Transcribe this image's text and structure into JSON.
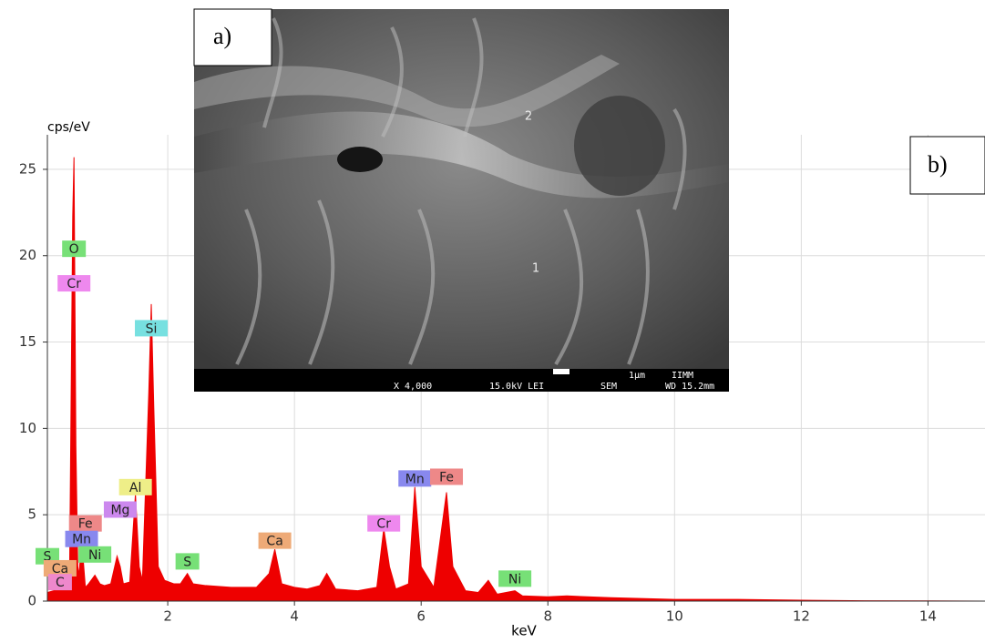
{
  "chart_data": {
    "type": "area",
    "y_label": "cps/eV",
    "x_label": "keV",
    "x": [
      0.1,
      0.2,
      0.25,
      0.28,
      0.3,
      0.35,
      0.4,
      0.45,
      0.5,
      0.52,
      0.55,
      0.58,
      0.6,
      0.64,
      0.7,
      0.75,
      0.85,
      0.93,
      1.0,
      1.1,
      1.2,
      1.25,
      1.3,
      1.4,
      1.49,
      1.55,
      1.6,
      1.7,
      1.74,
      1.78,
      1.85,
      1.95,
      2.1,
      2.2,
      2.31,
      2.4,
      2.6,
      3.0,
      3.4,
      3.6,
      3.69,
      3.8,
      4.0,
      4.2,
      4.4,
      4.51,
      4.65,
      5.0,
      5.3,
      5.41,
      5.5,
      5.6,
      5.8,
      5.9,
      6.0,
      6.2,
      6.4,
      6.5,
      6.7,
      6.9,
      7.06,
      7.2,
      7.48,
      7.6,
      8.0,
      8.3,
      9,
      10,
      11,
      12,
      13,
      14,
      14.9
    ],
    "values": [
      0.5,
      0.6,
      1,
      0.8,
      0.7,
      1.8,
      1.2,
      1.5,
      22.3,
      25.7,
      9,
      2,
      1.5,
      3.6,
      0.8,
      1.0,
      1.5,
      1.0,
      0.9,
      1.0,
      2.6,
      2.0,
      1.0,
      1.1,
      6.2,
      2,
      1.2,
      12,
      17.2,
      11.2,
      2.0,
      1.2,
      1.0,
      1.0,
      1.6,
      1.0,
      0.9,
      0.8,
      0.8,
      1.6,
      3.0,
      1.0,
      0.8,
      0.7,
      0.9,
      1.6,
      0.7,
      0.6,
      0.8,
      4.2,
      2.0,
      0.7,
      1.0,
      6.6,
      2.0,
      0.8,
      6.3,
      2.0,
      0.6,
      0.5,
      1.2,
      0.4,
      0.6,
      0.3,
      0.25,
      0.3,
      0.2,
      0.1,
      0.1,
      0.05,
      0.02,
      0.01,
      0.0
    ],
    "color": "#ee0000",
    "xlim": [
      0.1,
      14.9
    ],
    "ylim": [
      0,
      27
    ],
    "xticks": [
      2,
      4,
      6,
      8,
      10,
      12,
      14
    ],
    "yticks": [
      0,
      5,
      10,
      15,
      20,
      25
    ],
    "grid": true,
    "peak_labels": [
      {
        "text": "O",
        "x": 0.52,
        "y": 20.4,
        "color": "#77e077"
      },
      {
        "text": "Cr",
        "x": 0.52,
        "y": 18.4,
        "color": "#ee88ee"
      },
      {
        "text": "Si",
        "x": 1.74,
        "y": 15.8,
        "color": "#77e0e0"
      },
      {
        "text": "Al",
        "x": 1.49,
        "y": 6.6,
        "color": "#eeee88"
      },
      {
        "text": "Mg",
        "x": 1.25,
        "y": 5.3,
        "color": "#cc88ee"
      },
      {
        "text": "Fe",
        "x": 0.7,
        "y": 4.5,
        "color": "#ee8888"
      },
      {
        "text": "Mn",
        "x": 0.64,
        "y": 3.6,
        "color": "#8888ee"
      },
      {
        "text": "Ni",
        "x": 0.85,
        "y": 2.7,
        "color": "#77e077"
      },
      {
        "text": "S",
        "x": 0.1,
        "y": 2.6,
        "color": "#77e077"
      },
      {
        "text": "Ca",
        "x": 0.3,
        "y": 1.9,
        "color": "#eeaa77"
      },
      {
        "text": "C",
        "x": 0.3,
        "y": 1.1,
        "color": "#ee88cc"
      },
      {
        "text": "S",
        "x": 2.31,
        "y": 2.3,
        "color": "#77e077"
      },
      {
        "text": "Ca",
        "x": 3.69,
        "y": 3.5,
        "color": "#eeaa77"
      },
      {
        "text": "Cr",
        "x": 5.41,
        "y": 4.5,
        "color": "#ee88ee"
      },
      {
        "text": "Mn",
        "x": 5.9,
        "y": 7.1,
        "color": "#8888ee"
      },
      {
        "text": "Fe",
        "x": 6.4,
        "y": 7.2,
        "color": "#ee8888"
      },
      {
        "text": "Ni",
        "x": 7.48,
        "y": 1.3,
        "color": "#77e077"
      }
    ]
  },
  "inset": {
    "panel_label": "a)",
    "point_labels": [
      "2",
      "1"
    ],
    "scale_text": "1μm",
    "lab": "IIMM",
    "magnification": "X 4,000",
    "voltage": "15.0kV LEI",
    "mode": "SEM",
    "working_distance": "WD 15.2mm"
  },
  "panel_b_label": "b)"
}
